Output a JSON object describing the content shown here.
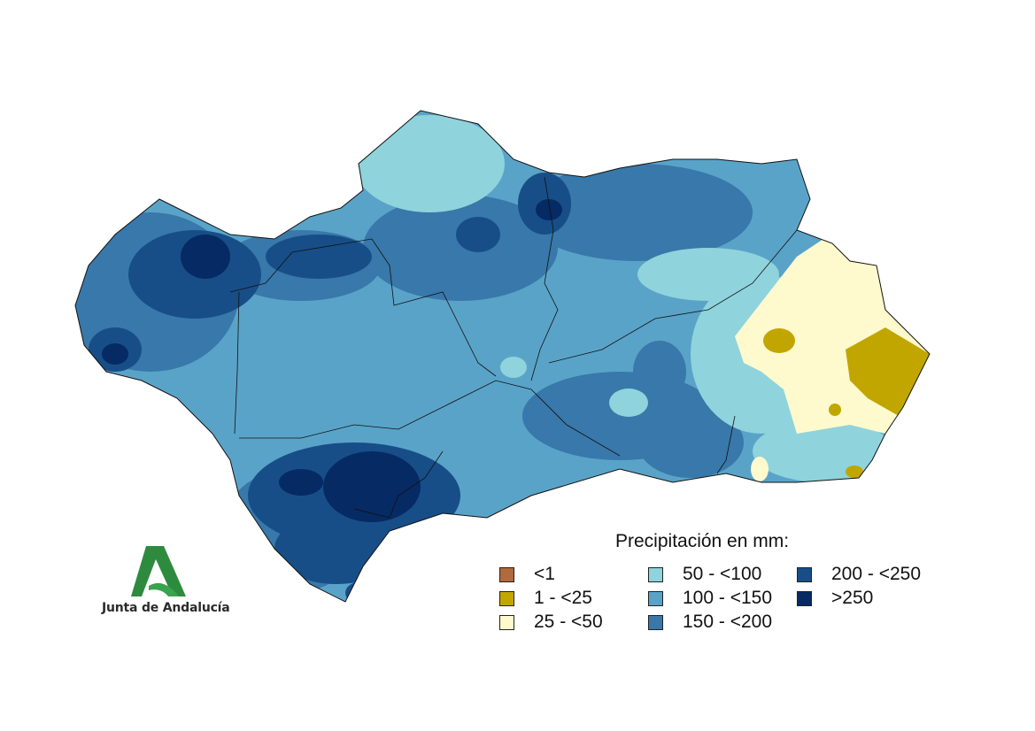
{
  "legend": {
    "title": "Precipitación en mm:",
    "items": [
      {
        "label": "<1",
        "color": "#b06a3b"
      },
      {
        "label": "1 - <25",
        "color": "#c2a600"
      },
      {
        "label": "25 - <50",
        "color": "#fffacd"
      },
      {
        "label": "50 - <100",
        "color": "#8fd3dc"
      },
      {
        "label": "100 - <150",
        "color": "#5aa3c8"
      },
      {
        "label": "150 - <200",
        "color": "#3878aa"
      },
      {
        "label": "200 - <250",
        "color": "#174e88"
      },
      {
        "label": ">250",
        "color": "#062a63"
      }
    ]
  },
  "logo": {
    "text": "Junta de Andalucía",
    "color": "#2e8b3e"
  }
}
